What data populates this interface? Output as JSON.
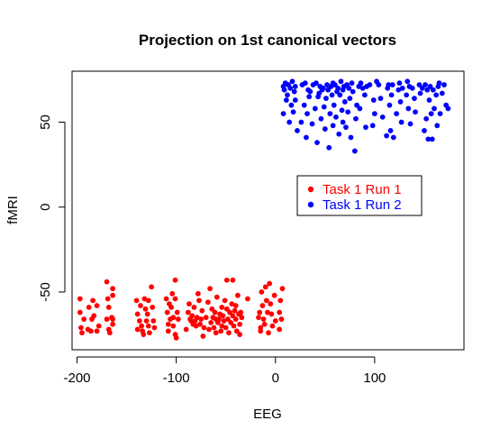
{
  "chart_data": {
    "type": "scatter",
    "title": "Projection on 1st canonical vectors",
    "xlabel": "EEG",
    "ylabel": "fMRI",
    "xlim": [
      -205,
      190
    ],
    "ylim": [
      -84,
      80
    ],
    "x_ticks": [
      -200,
      -100,
      0,
      100
    ],
    "y_ticks": [
      -50,
      0,
      50
    ],
    "x_tick_labels": [
      "-200",
      "-100",
      "0",
      "100"
    ],
    "y_tick_labels": [
      "-50",
      "0",
      "50"
    ],
    "legend_position": "center-right",
    "grid": false,
    "series": [
      {
        "name": "Task 1 Run 1",
        "color": "#ff0000",
        "points": [
          [
            -197,
            -54
          ],
          [
            -197,
            -62
          ],
          [
            -196,
            -71
          ],
          [
            -195,
            -74
          ],
          [
            -193,
            -66
          ],
          [
            -189,
            -72
          ],
          [
            -188,
            -59
          ],
          [
            -186,
            -73
          ],
          [
            -185,
            -66
          ],
          [
            -184,
            -55
          ],
          [
            -183,
            -64
          ],
          [
            -180,
            -58
          ],
          [
            -180,
            -73
          ],
          [
            -178,
            -70
          ],
          [
            -170,
            -44
          ],
          [
            -170,
            -66
          ],
          [
            -169,
            -54
          ],
          [
            -168,
            -59
          ],
          [
            -168,
            -72
          ],
          [
            -167,
            -74
          ],
          [
            -165,
            -65
          ],
          [
            -164,
            -48
          ],
          [
            -164,
            -52
          ],
          [
            -164,
            -66
          ],
          [
            -164,
            -69
          ],
          [
            -140,
            -55
          ],
          [
            -139,
            -63
          ],
          [
            -139,
            -72
          ],
          [
            -137,
            -67
          ],
          [
            -136,
            -58
          ],
          [
            -135,
            -70
          ],
          [
            -134,
            -73
          ],
          [
            -133,
            -75
          ],
          [
            -132,
            -54
          ],
          [
            -131,
            -60
          ],
          [
            -130,
            -67
          ],
          [
            -129,
            -63
          ],
          [
            -128,
            -55
          ],
          [
            -128,
            -70
          ],
          [
            -127,
            -74
          ],
          [
            -125,
            -47
          ],
          [
            -124,
            -59
          ],
          [
            -123,
            -67
          ],
          [
            -122,
            -71
          ],
          [
            -110,
            -54
          ],
          [
            -109,
            -62
          ],
          [
            -108,
            -69
          ],
          [
            -108,
            -73
          ],
          [
            -107,
            -57
          ],
          [
            -106,
            -66
          ],
          [
            -105,
            -59
          ],
          [
            -104,
            -51
          ],
          [
            -103,
            -65
          ],
          [
            -103,
            -70
          ],
          [
            -101,
            -43
          ],
          [
            -101,
            -54
          ],
          [
            -101,
            -75
          ],
          [
            -100,
            -77
          ],
          [
            -99,
            -62
          ],
          [
            -98,
            -66
          ],
          [
            -90,
            -72
          ],
          [
            -88,
            -62
          ],
          [
            -87,
            -57
          ],
          [
            -86,
            -66
          ],
          [
            -85,
            -67
          ],
          [
            -84,
            -64
          ],
          [
            -83,
            -69
          ],
          [
            -82,
            -59
          ],
          [
            -81,
            -67
          ],
          [
            -80,
            -70
          ],
          [
            -79,
            -65
          ],
          [
            -78,
            -51
          ],
          [
            -77,
            -55
          ],
          [
            -76,
            -69
          ],
          [
            -75,
            -66
          ],
          [
            -74,
            -61
          ],
          [
            -73,
            -76
          ],
          [
            -72,
            -71
          ],
          [
            -70,
            -65
          ],
          [
            -68,
            -56
          ],
          [
            -67,
            -72
          ],
          [
            -66,
            -48
          ],
          [
            -65,
            -68
          ],
          [
            -64,
            -60
          ],
          [
            -63,
            -65
          ],
          [
            -62,
            -71
          ],
          [
            -61,
            -62
          ],
          [
            -60,
            -74
          ],
          [
            -60,
            -66
          ],
          [
            -59,
            -53
          ],
          [
            -58,
            -68
          ],
          [
            -57,
            -66
          ],
          [
            -56,
            -63
          ],
          [
            -55,
            -73
          ],
          [
            -54,
            -59
          ],
          [
            -54,
            -70
          ],
          [
            -53,
            -64
          ],
          [
            -52,
            -67
          ],
          [
            -51,
            -55
          ],
          [
            -50,
            -71
          ],
          [
            -49,
            -60
          ],
          [
            -49,
            -43
          ],
          [
            -48,
            -66
          ],
          [
            -47,
            -74
          ],
          [
            -46,
            -62
          ],
          [
            -45,
            -68
          ],
          [
            -44,
            -57
          ],
          [
            -43,
            -64
          ],
          [
            -43,
            -43
          ],
          [
            -42,
            -70
          ],
          [
            -41,
            -61
          ],
          [
            -40,
            -66
          ],
          [
            -40,
            -58
          ],
          [
            -39,
            -73
          ],
          [
            -38,
            -52
          ],
          [
            -37,
            -63
          ],
          [
            -36,
            -69
          ],
          [
            -36,
            -75
          ],
          [
            -35,
            -62
          ],
          [
            -34,
            -65
          ],
          [
            -28,
            -54
          ],
          [
            -17,
            -65
          ],
          [
            -16,
            -62
          ],
          [
            -15,
            -71
          ],
          [
            -15,
            -73
          ],
          [
            -14,
            -50
          ],
          [
            -13,
            -58
          ],
          [
            -12,
            -66
          ],
          [
            -11,
            -69
          ],
          [
            -10,
            -47
          ],
          [
            -9,
            -55
          ],
          [
            -8,
            -62
          ],
          [
            -7,
            -74
          ],
          [
            -6,
            -45
          ],
          [
            -5,
            -57
          ],
          [
            -4,
            -63
          ],
          [
            -3,
            -70
          ],
          [
            -1,
            -52
          ],
          [
            0,
            -67
          ],
          [
            4,
            -62
          ],
          [
            4,
            -72
          ],
          [
            5,
            -55
          ],
          [
            6,
            -66
          ],
          [
            7,
            -48
          ]
        ]
      },
      {
        "name": "Task 1 Run 2",
        "color": "#0000ff",
        "points": [
          [
            8,
            71
          ],
          [
            8,
            55
          ],
          [
            9,
            69
          ],
          [
            10,
            73
          ],
          [
            11,
            63
          ],
          [
            12,
            66
          ],
          [
            13,
            72
          ],
          [
            14,
            50
          ],
          [
            15,
            70
          ],
          [
            16,
            60
          ],
          [
            17,
            74
          ],
          [
            18,
            56
          ],
          [
            19,
            68
          ],
          [
            20,
            71
          ],
          [
            20,
            63
          ],
          [
            22,
            45
          ],
          [
            26,
            50
          ],
          [
            27,
            72
          ],
          [
            29,
            60
          ],
          [
            30,
            73
          ],
          [
            31,
            41
          ],
          [
            32,
            55
          ],
          [
            33,
            69
          ],
          [
            34,
            65
          ],
          [
            35,
            68
          ],
          [
            37,
            49
          ],
          [
            38,
            72
          ],
          [
            40,
            58
          ],
          [
            41,
            73
          ],
          [
            42,
            38
          ],
          [
            43,
            65
          ],
          [
            44,
            67
          ],
          [
            45,
            71
          ],
          [
            46,
            52
          ],
          [
            47,
            69
          ],
          [
            48,
            70
          ],
          [
            49,
            59
          ],
          [
            50,
            46
          ],
          [
            51,
            64
          ],
          [
            52,
            72
          ],
          [
            53,
            69
          ],
          [
            54,
            35
          ],
          [
            55,
            55
          ],
          [
            56,
            71
          ],
          [
            57,
            66
          ],
          [
            58,
            73
          ],
          [
            58,
            48
          ],
          [
            59,
            60
          ],
          [
            60,
            72
          ],
          [
            61,
            53
          ],
          [
            62,
            68
          ],
          [
            63,
            70
          ],
          [
            64,
            43
          ],
          [
            65,
            66
          ],
          [
            66,
            74
          ],
          [
            67,
            57
          ],
          [
            68,
            69
          ],
          [
            68,
            50
          ],
          [
            69,
            71
          ],
          [
            70,
            62
          ],
          [
            71,
            47
          ],
          [
            72,
            72
          ],
          [
            73,
            56
          ],
          [
            74,
            70
          ],
          [
            75,
            64
          ],
          [
            76,
            41
          ],
          [
            77,
            73
          ],
          [
            78,
            68
          ],
          [
            80,
            33
          ],
          [
            81,
            52
          ],
          [
            82,
            60
          ],
          [
            84,
            71
          ],
          [
            85,
            58
          ],
          [
            86,
            73
          ],
          [
            88,
            70
          ],
          [
            90,
            66
          ],
          [
            91,
            47
          ],
          [
            92,
            71
          ],
          [
            95,
            72
          ],
          [
            98,
            48
          ],
          [
            99,
            63
          ],
          [
            100,
            55
          ],
          [
            102,
            74
          ],
          [
            104,
            72
          ],
          [
            106,
            64
          ],
          [
            108,
            53
          ],
          [
            112,
            42
          ],
          [
            113,
            70
          ],
          [
            114,
            72
          ],
          [
            115,
            60
          ],
          [
            116,
            45
          ],
          [
            117,
            66
          ],
          [
            118,
            72
          ],
          [
            119,
            41
          ],
          [
            122,
            55
          ],
          [
            124,
            69
          ],
          [
            125,
            73
          ],
          [
            126,
            62
          ],
          [
            127,
            50
          ],
          [
            128,
            70
          ],
          [
            132,
            66
          ],
          [
            133,
            74
          ],
          [
            134,
            58
          ],
          [
            135,
            71
          ],
          [
            136,
            49
          ],
          [
            138,
            70
          ],
          [
            140,
            64
          ],
          [
            141,
            56
          ],
          [
            145,
            72
          ],
          [
            146,
            67
          ],
          [
            148,
            70
          ],
          [
            150,
            45
          ],
          [
            151,
            72
          ],
          [
            152,
            52
          ],
          [
            153,
            69
          ],
          [
            154,
            40
          ],
          [
            155,
            63
          ],
          [
            156,
            71
          ],
          [
            157,
            55
          ],
          [
            158,
            40
          ],
          [
            159,
            69
          ],
          [
            160,
            58
          ],
          [
            162,
            66
          ],
          [
            163,
            48
          ],
          [
            164,
            71
          ],
          [
            165,
            73
          ],
          [
            166,
            55
          ],
          [
            168,
            67
          ],
          [
            170,
            72
          ],
          [
            172,
            60
          ],
          [
            174,
            58
          ]
        ]
      }
    ]
  }
}
